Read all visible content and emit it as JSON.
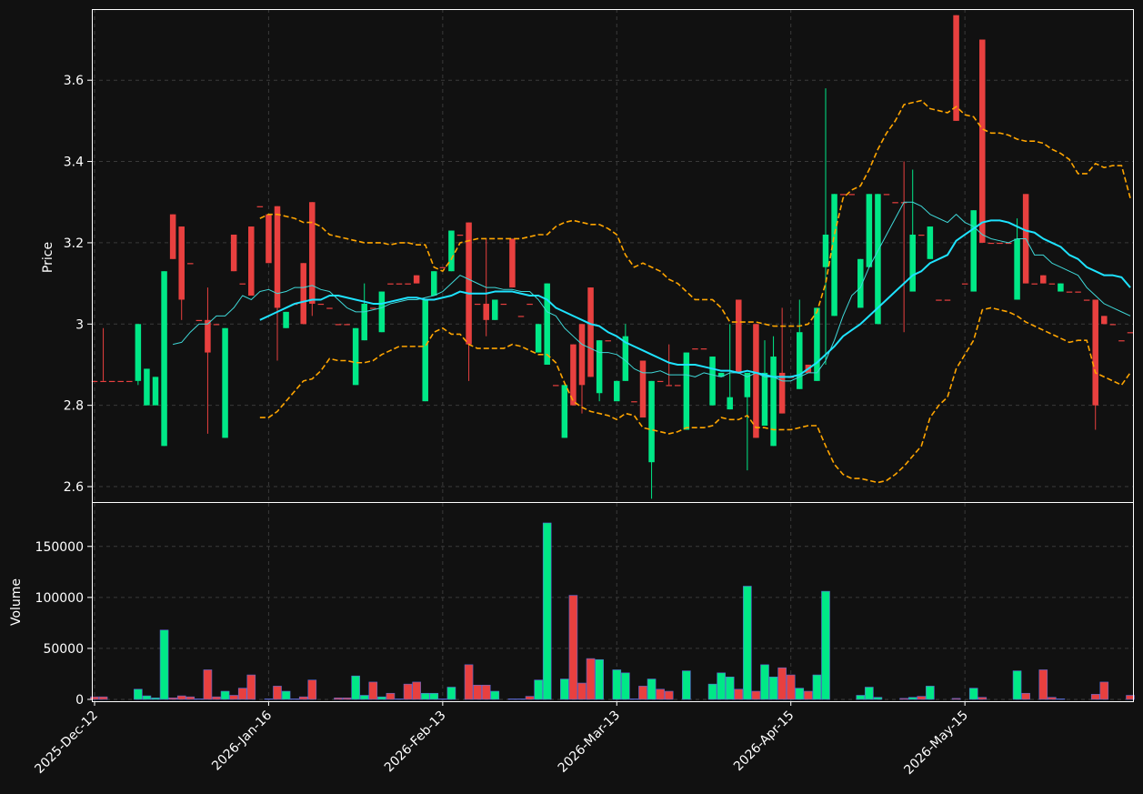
{
  "chart_data": {
    "type": "candlestick",
    "categories": [
      "2025-Dec-12",
      null,
      null,
      null,
      null,
      null,
      null,
      null,
      null,
      null,
      null,
      null,
      null,
      null,
      null,
      null,
      null,
      null,
      null,
      null,
      "2026-Jan-16",
      null,
      null,
      null,
      null,
      null,
      null,
      null,
      null,
      null,
      null,
      null,
      null,
      null,
      null,
      null,
      null,
      null,
      null,
      null,
      "2026-Feb-13",
      null,
      null,
      null,
      null,
      null,
      null,
      null,
      null,
      null,
      null,
      null,
      null,
      null,
      null,
      null,
      null,
      null,
      null,
      null,
      "2026-Mar-13",
      null,
      null,
      null,
      null,
      null,
      null,
      null,
      null,
      null,
      null,
      null,
      null,
      null,
      null,
      null,
      null,
      null,
      null,
      null,
      "2026-Apr-15",
      null,
      null,
      null,
      null,
      null,
      null,
      null,
      null,
      null,
      null,
      null,
      null,
      null,
      null,
      null,
      null,
      null,
      null,
      null,
      "2026-May-15",
      null,
      null,
      null,
      null,
      null,
      null,
      null,
      null,
      null,
      null,
      null,
      null,
      null,
      null,
      null,
      null,
      null,
      null,
      null
    ],
    "open": [
      2.86,
      2.86,
      2.86,
      2.86,
      2.86,
      2.86,
      2.8,
      2.8,
      2.7,
      3.27,
      3.24,
      3.15,
      3.01,
      3.01,
      3.0,
      2.72,
      3.22,
      3.1,
      3.24,
      3.29,
      3.27,
      3.29,
      2.99,
      3.05,
      3.15,
      3.3,
      3.05,
      3.04,
      3.0,
      3.0,
      2.85,
      2.96,
      3.04,
      2.98,
      3.1,
      3.1,
      3.1,
      3.12,
      2.81,
      3.07,
      3.14,
      3.13,
      3.22,
      3.25,
      3.05,
      3.05,
      3.01,
      3.05,
      3.21,
      3.02,
      3.05,
      2.93,
      2.9,
      2.85,
      2.72,
      2.95,
      3.0,
      3.09,
      2.83,
      2.96,
      2.81,
      2.86,
      2.81,
      2.91,
      2.66,
      2.86,
      2.85,
      2.85,
      2.74,
      2.94,
      2.94,
      2.8,
      2.87,
      2.79,
      3.06,
      2.82,
      3.0,
      2.75,
      2.7,
      2.88,
      2.87,
      2.84,
      2.9,
      2.86,
      3.14,
      3.02,
      3.32,
      3.32,
      3.04,
      3.14,
      3.0,
      3.32,
      3.3,
      3.3,
      3.08,
      3.22,
      3.16,
      3.06,
      3.06,
      3.76,
      3.1,
      3.08,
      3.7,
      3.2,
      3.2,
      3.2,
      3.06,
      3.32,
      3.1,
      3.12,
      3.1,
      3.08,
      3.08,
      3.08,
      3.06,
      3.06,
      3.02,
      3.0,
      2.96,
      2.98
    ],
    "high": [
      2.86,
      2.99,
      2.86,
      2.86,
      2.86,
      3.0,
      2.89,
      2.87,
      3.13,
      3.27,
      3.24,
      3.15,
      3.01,
      3.09,
      3.0,
      2.99,
      3.22,
      3.1,
      3.24,
      3.29,
      3.27,
      3.29,
      3.03,
      3.05,
      3.15,
      3.3,
      3.05,
      3.04,
      3.0,
      3.0,
      2.99,
      3.1,
      3.04,
      3.08,
      3.1,
      3.1,
      3.1,
      3.12,
      3.06,
      3.13,
      3.14,
      3.23,
      3.22,
      3.25,
      3.05,
      3.21,
      3.06,
      3.05,
      3.21,
      3.02,
      3.05,
      3.0,
      3.1,
      2.85,
      2.85,
      2.95,
      3.0,
      3.09,
      2.96,
      2.96,
      2.86,
      3.0,
      2.81,
      2.91,
      2.86,
      2.86,
      2.95,
      2.85,
      2.93,
      2.94,
      2.94,
      2.92,
      2.88,
      3.0,
      3.06,
      2.88,
      3.0,
      2.96,
      2.97,
      3.04,
      2.87,
      3.06,
      2.9,
      3.04,
      3.58,
      3.32,
      3.32,
      3.32,
      3.16,
      3.32,
      3.32,
      3.32,
      3.3,
      3.4,
      3.38,
      3.22,
      3.24,
      3.06,
      3.06,
      3.76,
      3.1,
      3.28,
      3.7,
      3.2,
      3.2,
      3.2,
      3.26,
      3.32,
      3.1,
      3.12,
      3.1,
      3.1,
      3.08,
      3.08,
      3.06,
      3.06,
      3.02,
      3.0,
      2.96,
      2.98
    ],
    "low": [
      2.86,
      2.86,
      2.86,
      2.86,
      2.86,
      2.85,
      2.8,
      2.8,
      2.7,
      3.16,
      3.01,
      3.15,
      3.01,
      2.73,
      3.0,
      2.72,
      3.13,
      3.1,
      3.07,
      3.29,
      3.15,
      2.91,
      2.99,
      3.05,
      3.0,
      3.02,
      3.05,
      3.04,
      3.0,
      3.0,
      2.85,
      2.96,
      3.04,
      2.98,
      3.1,
      3.1,
      3.1,
      3.1,
      2.81,
      3.07,
      3.14,
      3.13,
      3.22,
      2.86,
      3.05,
      2.97,
      3.01,
      3.05,
      3.09,
      3.02,
      3.05,
      2.93,
      2.9,
      2.85,
      2.72,
      2.8,
      2.78,
      2.87,
      2.81,
      2.96,
      2.81,
      2.86,
      2.81,
      2.77,
      2.57,
      2.86,
      2.85,
      2.85,
      2.74,
      2.94,
      2.94,
      2.8,
      2.87,
      2.79,
      2.88,
      2.64,
      2.72,
      2.75,
      2.7,
      2.78,
      2.87,
      2.84,
      2.88,
      2.86,
      2.9,
      3.02,
      3.32,
      3.32,
      3.04,
      3.14,
      3.0,
      3.32,
      3.3,
      2.98,
      3.08,
      3.22,
      3.16,
      3.06,
      3.06,
      3.5,
      3.1,
      3.08,
      3.2,
      3.2,
      3.2,
      3.2,
      3.06,
      3.1,
      3.1,
      3.1,
      3.1,
      3.08,
      3.08,
      3.08,
      3.06,
      2.74,
      3.0,
      3.0,
      2.96,
      2.98
    ],
    "close": [
      2.86,
      2.86,
      2.86,
      2.86,
      2.86,
      3.0,
      2.89,
      2.87,
      3.13,
      3.16,
      3.06,
      3.15,
      3.01,
      2.93,
      3.0,
      2.99,
      3.13,
      3.1,
      3.07,
      3.29,
      3.15,
      3.04,
      3.03,
      3.05,
      3.0,
      3.05,
      3.05,
      3.04,
      3.0,
      3.0,
      2.99,
      3.05,
      3.04,
      3.08,
      3.1,
      3.1,
      3.1,
      3.1,
      3.06,
      3.13,
      3.14,
      3.23,
      3.22,
      2.95,
      3.05,
      3.01,
      3.06,
      3.05,
      3.09,
      3.02,
      3.05,
      3.0,
      3.1,
      2.85,
      2.85,
      2.8,
      2.85,
      2.87,
      2.96,
      2.96,
      2.86,
      2.97,
      2.81,
      2.77,
      2.86,
      2.86,
      2.85,
      2.85,
      2.93,
      2.94,
      2.94,
      2.92,
      2.88,
      2.82,
      2.88,
      2.88,
      2.72,
      2.88,
      2.92,
      2.78,
      2.87,
      2.98,
      2.88,
      3.04,
      3.22,
      3.32,
      3.32,
      3.32,
      3.16,
      3.32,
      3.32,
      3.32,
      3.3,
      3.3,
      3.22,
      3.22,
      3.24,
      3.06,
      3.06,
      3.5,
      3.1,
      3.28,
      3.2,
      3.2,
      3.2,
      3.2,
      3.21,
      3.1,
      3.1,
      3.1,
      3.1,
      3.1,
      3.08,
      3.08,
      3.06,
      2.8,
      3.0,
      3.0,
      2.96,
      2.98
    ],
    "volume": [
      2500,
      2500,
      0,
      0,
      0,
      10000,
      3500,
      1500,
      68000,
      1500,
      3500,
      2500,
      500,
      29000,
      2500,
      8000,
      4000,
      11000,
      24000,
      0,
      500,
      13000,
      8000,
      500,
      2500,
      19000,
      0,
      0,
      1500,
      1500,
      23000,
      4000,
      17000,
      2500,
      6000,
      500,
      15000,
      17000,
      6000,
      6000,
      500,
      12000,
      0,
      34000,
      14000,
      14000,
      8000,
      0,
      500,
      500,
      3000,
      19000,
      173000,
      0,
      20000,
      102000,
      16000,
      40000,
      39000,
      0,
      29000,
      26000,
      500,
      13000,
      20000,
      10000,
      8000,
      0,
      28000,
      0,
      0,
      15000,
      26000,
      22000,
      10000,
      111000,
      8000,
      34000,
      22000,
      31000,
      24000,
      11000,
      8000,
      24000,
      106000,
      0,
      0,
      0,
      4000,
      12000,
      2000,
      0,
      0,
      1000,
      2000,
      3000,
      13000,
      0,
      0,
      1000,
      0,
      11000,
      2000,
      0,
      0,
      0,
      28000,
      6000,
      0,
      29000,
      2000,
      500,
      0,
      0,
      0,
      5000,
      17000,
      0,
      0,
      4000
    ],
    "up_color": "#00e887",
    "down_color": "#e8403f",
    "overlays": [
      {
        "color": "#3fd8d8",
        "dashed": false,
        "values": [
          null,
          null,
          null,
          null,
          null,
          null,
          null,
          null,
          null,
          2.95,
          2.955,
          2.98,
          3.0,
          3.0,
          3.02,
          3.02,
          3.04,
          3.07,
          3.06,
          3.08,
          3.085,
          3.075,
          3.08,
          3.09,
          3.09,
          3.095,
          3.085,
          3.08,
          3.06,
          3.04,
          3.03,
          3.03,
          3.035,
          3.04,
          3.05,
          3.055,
          3.06,
          3.06,
          3.065,
          3.07,
          3.08,
          3.1,
          3.12,
          3.11,
          3.1,
          3.09,
          3.09,
          3.085,
          3.085,
          3.08,
          3.08,
          3.06,
          3.03,
          3.02,
          2.99,
          2.97,
          2.95,
          2.94,
          2.93,
          2.93,
          2.925,
          2.91,
          2.89,
          2.88,
          2.88,
          2.885,
          2.875,
          2.875,
          2.875,
          2.87,
          2.88,
          2.875,
          2.87,
          2.88,
          2.88,
          2.87,
          2.88,
          2.87,
          2.87,
          2.86,
          2.86,
          2.87,
          2.88,
          2.88,
          2.91,
          2.96,
          3.02,
          3.07,
          3.09,
          3.14,
          3.18,
          3.22,
          3.26,
          3.3,
          3.3,
          3.29,
          3.27,
          3.26,
          3.25,
          3.27,
          3.25,
          3.24,
          3.22,
          3.21,
          3.205,
          3.2,
          3.21,
          3.21,
          3.17,
          3.17,
          3.15,
          3.14,
          3.13,
          3.12,
          3.09,
          3.07,
          3.05,
          3.04,
          3.03,
          3.02
        ]
      },
      {
        "color": "#1ee3ff",
        "dashed": false,
        "values": [
          null,
          null,
          null,
          null,
          null,
          null,
          null,
          null,
          null,
          null,
          null,
          null,
          null,
          null,
          null,
          null,
          null,
          null,
          null,
          3.01,
          3.02,
          3.03,
          3.04,
          3.05,
          3.055,
          3.06,
          3.06,
          3.07,
          3.07,
          3.065,
          3.06,
          3.055,
          3.05,
          3.05,
          3.055,
          3.06,
          3.065,
          3.065,
          3.06,
          3.06,
          3.065,
          3.07,
          3.08,
          3.075,
          3.075,
          3.075,
          3.08,
          3.08,
          3.08,
          3.075,
          3.07,
          3.07,
          3.06,
          3.04,
          3.03,
          3.02,
          3.01,
          3.0,
          2.995,
          2.98,
          2.97,
          2.955,
          2.945,
          2.935,
          2.925,
          2.915,
          2.905,
          2.9,
          2.9,
          2.9,
          2.895,
          2.89,
          2.885,
          2.885,
          2.88,
          2.885,
          2.88,
          2.875,
          2.87,
          2.87,
          2.87,
          2.875,
          2.89,
          2.905,
          2.925,
          2.945,
          2.97,
          2.985,
          3.0,
          3.02,
          3.04,
          3.06,
          3.08,
          3.1,
          3.12,
          3.13,
          3.15,
          3.16,
          3.17,
          3.205,
          3.22,
          3.235,
          3.25,
          3.255,
          3.255,
          3.25,
          3.24,
          3.23,
          3.225,
          3.21,
          3.2,
          3.19,
          3.17,
          3.16,
          3.14,
          3.13,
          3.12,
          3.12,
          3.115,
          3.09
        ]
      },
      {
        "color": "#ffa500",
        "dashed": true,
        "values": [
          null,
          null,
          null,
          null,
          null,
          null,
          null,
          null,
          null,
          null,
          null,
          null,
          null,
          null,
          null,
          null,
          null,
          null,
          null,
          3.26,
          3.27,
          3.27,
          3.265,
          3.26,
          3.25,
          3.25,
          3.24,
          3.22,
          3.215,
          3.21,
          3.205,
          3.2,
          3.2,
          3.2,
          3.195,
          3.2,
          3.2,
          3.195,
          3.195,
          3.14,
          3.13,
          3.16,
          3.2,
          3.205,
          3.21,
          3.21,
          3.21,
          3.21,
          3.21,
          3.21,
          3.215,
          3.22,
          3.22,
          3.24,
          3.25,
          3.255,
          3.25,
          3.245,
          3.245,
          3.235,
          3.22,
          3.17,
          3.14,
          3.15,
          3.14,
          3.13,
          3.11,
          3.1,
          3.08,
          3.06,
          3.06,
          3.06,
          3.04,
          3.005,
          3.005,
          3.005,
          3.005,
          3.0,
          2.995,
          2.995,
          2.995,
          2.995,
          3.0,
          3.03,
          3.1,
          3.22,
          3.31,
          3.33,
          3.34,
          3.38,
          3.43,
          3.47,
          3.5,
          3.54,
          3.545,
          3.55,
          3.53,
          3.525,
          3.52,
          3.535,
          3.515,
          3.51,
          3.48,
          3.47,
          3.47,
          3.465,
          3.455,
          3.45,
          3.45,
          3.445,
          3.43,
          3.42,
          3.405,
          3.37,
          3.37,
          3.395,
          3.385,
          3.39,
          3.39,
          3.31
        ]
      },
      {
        "color": "#ffa500",
        "dashed": true,
        "values": [
          null,
          null,
          null,
          null,
          null,
          null,
          null,
          null,
          null,
          null,
          null,
          null,
          null,
          null,
          null,
          null,
          null,
          null,
          null,
          2.77,
          2.77,
          2.785,
          2.81,
          2.835,
          2.86,
          2.865,
          2.885,
          2.915,
          2.91,
          2.91,
          2.905,
          2.905,
          2.91,
          2.925,
          2.935,
          2.945,
          2.945,
          2.945,
          2.945,
          2.98,
          2.99,
          2.975,
          2.975,
          2.95,
          2.94,
          2.94,
          2.94,
          2.94,
          2.95,
          2.945,
          2.935,
          2.925,
          2.925,
          2.905,
          2.855,
          2.81,
          2.795,
          2.785,
          2.78,
          2.775,
          2.765,
          2.78,
          2.775,
          2.745,
          2.74,
          2.735,
          2.73,
          2.735,
          2.745,
          2.745,
          2.745,
          2.75,
          2.77,
          2.765,
          2.765,
          2.775,
          2.745,
          2.745,
          2.74,
          2.74,
          2.74,
          2.745,
          2.75,
          2.75,
          2.7,
          2.655,
          2.63,
          2.62,
          2.62,
          2.615,
          2.61,
          2.615,
          2.63,
          2.65,
          2.675,
          2.7,
          2.77,
          2.8,
          2.82,
          2.89,
          2.925,
          2.96,
          3.035,
          3.04,
          3.035,
          3.03,
          3.02,
          3.005,
          2.995,
          2.985,
          2.975,
          2.965,
          2.955,
          2.96,
          2.96,
          2.88,
          2.87,
          2.86,
          2.85,
          2.88
        ]
      }
    ],
    "ylabel": "Price",
    "ylim": [
      2.562,
      3.775
    ],
    "yticks": [
      2.6,
      2.8,
      3.0,
      3.2,
      3.4,
      3.6
    ],
    "volume_label": "Volume",
    "volume_ylim": [
      -1800,
      192600
    ],
    "volume_yticks": [
      0,
      50000,
      100000,
      150000
    ],
    "grid": true
  }
}
